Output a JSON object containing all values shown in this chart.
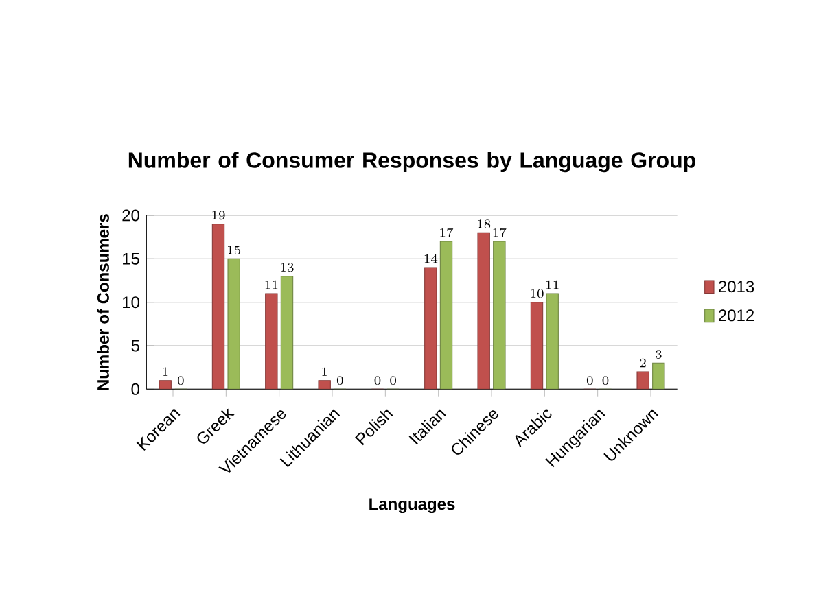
{
  "chart_data": {
    "type": "bar",
    "title": "Number of Consumer Responses by Language Group",
    "xlabel": "Languages",
    "ylabel": "Number of Consumers",
    "categories": [
      "Korean",
      "Greek",
      "Vietnamese",
      "Lithuanian",
      "Polish",
      "Italian",
      "Chinese",
      "Arabic",
      "Hungarian",
      "Unknown"
    ],
    "series": [
      {
        "name": "2013",
        "color": "#c0504d",
        "values": [
          1,
          19,
          11,
          1,
          0,
          14,
          18,
          10,
          0,
          2
        ]
      },
      {
        "name": "2012",
        "color": "#9bbb59",
        "values": [
          0,
          15,
          13,
          0,
          0,
          17,
          17,
          11,
          0,
          3
        ]
      }
    ],
    "ylim": [
      0,
      20
    ],
    "yticks": [
      0,
      5,
      10,
      15,
      20
    ],
    "grid": "y",
    "legend": "right",
    "data_labels": true
  }
}
